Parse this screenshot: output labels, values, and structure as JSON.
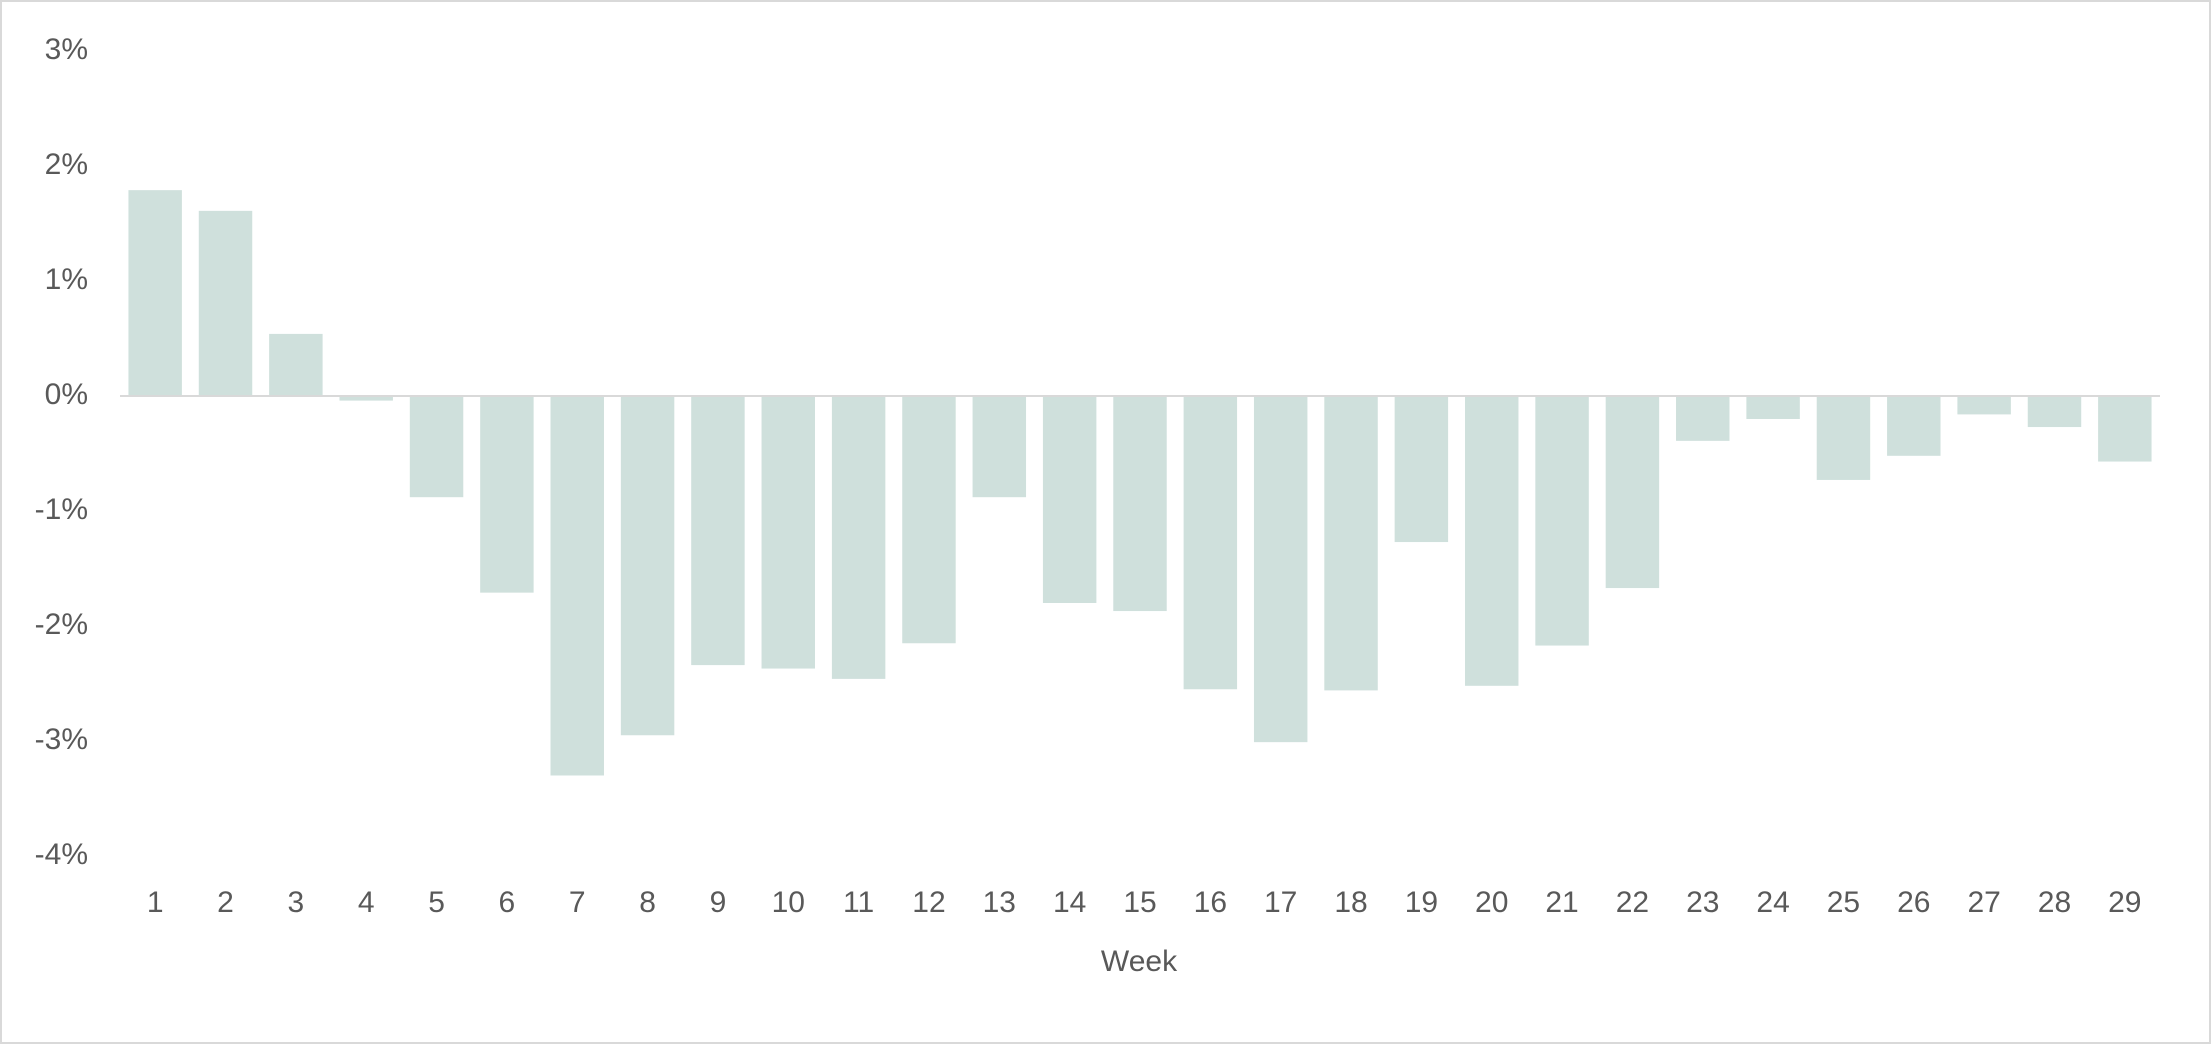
{
  "chart_data": {
    "type": "bar",
    "x_label": "Week",
    "categories": [
      "1",
      "2",
      "3",
      "4",
      "5",
      "6",
      "7",
      "8",
      "9",
      "10",
      "11",
      "12",
      "13",
      "14",
      "15",
      "16",
      "17",
      "18",
      "19",
      "20",
      "21",
      "22",
      "23",
      "24",
      "25",
      "26",
      "27",
      "28",
      "29"
    ],
    "values": [
      1.79,
      1.61,
      0.54,
      -0.04,
      -0.88,
      -1.71,
      -3.3,
      -2.95,
      -2.34,
      -2.37,
      -2.46,
      -2.15,
      -0.88,
      -1.8,
      -1.87,
      -2.55,
      -3.01,
      -2.56,
      -1.27,
      -2.52,
      -2.17,
      -1.67,
      -0.39,
      -0.2,
      -0.73,
      -0.52,
      -0.16,
      -0.27,
      -0.57
    ],
    "color": "#cfe0dc",
    "ylim": [
      -4,
      3
    ],
    "yticks": [
      {
        "value": -4,
        "label": "-4%"
      },
      {
        "value": -3,
        "label": "-3%"
      },
      {
        "value": -2,
        "label": "-2%"
      },
      {
        "value": -1,
        "label": "-1%"
      },
      {
        "value": 0,
        "label": "0%"
      },
      {
        "value": 1,
        "label": "1%"
      },
      {
        "value": 2,
        "label": "2%"
      },
      {
        "value": 3,
        "label": "3%"
      }
    ],
    "grid": false
  }
}
